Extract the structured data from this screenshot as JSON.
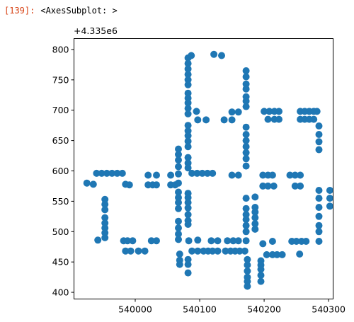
{
  "cell": {
    "prompt": "[139]:",
    "output_text": "<AxesSubplot: >"
  },
  "chart_data": {
    "type": "scatter",
    "y_offset_label": "+4.335e6",
    "xlim": [
      539905,
      540307
    ],
    "ylim": [
      389,
      818
    ],
    "x_ticks": [
      540000,
      540100,
      540200,
      540300
    ],
    "x_tick_labels": [
      "540000",
      "540100",
      "540200",
      "540300"
    ],
    "y_ticks": [
      400,
      450,
      500,
      550,
      600,
      650,
      700,
      750,
      800
    ],
    "y_tick_labels": [
      "400",
      "450",
      "500",
      "550",
      "600",
      "650",
      "700",
      "750",
      "800"
    ],
    "marker_color": "#1f77b4",
    "grid": false,
    "series": [
      {
        "points": [
          [
            539925,
            580
          ],
          [
            539935,
            578
          ],
          [
            539940,
            596
          ],
          [
            539948,
            596
          ],
          [
            539956,
            596
          ],
          [
            539964,
            596
          ],
          [
            539972,
            596
          ],
          [
            539980,
            596
          ],
          [
            539942,
            486
          ],
          [
            539953,
            553
          ],
          [
            539953,
            545
          ],
          [
            539953,
            536
          ],
          [
            539953,
            523
          ],
          [
            539953,
            514
          ],
          [
            539953,
            506
          ],
          [
            539953,
            498
          ],
          [
            539953,
            490
          ],
          [
            539985,
            578
          ],
          [
            539991,
            577
          ],
          [
            539982,
            485
          ],
          [
            539988,
            485
          ],
          [
            539996,
            485
          ],
          [
            539985,
            468
          ],
          [
            539993,
            468
          ],
          [
            540005,
            468
          ],
          [
            540015,
            468
          ],
          [
            540020,
            593
          ],
          [
            540033,
            593
          ],
          [
            540020,
            577
          ],
          [
            540027,
            577
          ],
          [
            540033,
            577
          ],
          [
            540025,
            485
          ],
          [
            540033,
            485
          ],
          [
            540055,
            593
          ],
          [
            540055,
            577
          ],
          [
            540062,
            577
          ],
          [
            540067,
            636
          ],
          [
            540067,
            627
          ],
          [
            540067,
            618
          ],
          [
            540067,
            607
          ],
          [
            540067,
            595
          ],
          [
            540067,
            580
          ],
          [
            540067,
            565
          ],
          [
            540067,
            556
          ],
          [
            540067,
            548
          ],
          [
            540067,
            538
          ],
          [
            540067,
            517
          ],
          [
            540067,
            506
          ],
          [
            540067,
            496
          ],
          [
            540067,
            487
          ],
          [
            540069,
            463
          ],
          [
            540069,
            453
          ],
          [
            540069,
            446
          ],
          [
            540082,
            786
          ],
          [
            540082,
            777
          ],
          [
            540082,
            768
          ],
          [
            540082,
            759
          ],
          [
            540082,
            750
          ],
          [
            540082,
            742
          ],
          [
            540082,
            728
          ],
          [
            540082,
            720
          ],
          [
            540082,
            712
          ],
          [
            540082,
            703
          ],
          [
            540082,
            694
          ],
          [
            540087,
            790
          ],
          [
            540082,
            675
          ],
          [
            540082,
            666
          ],
          [
            540082,
            658
          ],
          [
            540082,
            649
          ],
          [
            540082,
            640
          ],
          [
            540082,
            622
          ],
          [
            540082,
            613
          ],
          [
            540082,
            605
          ],
          [
            540082,
            563
          ],
          [
            540082,
            556
          ],
          [
            540082,
            548
          ],
          [
            540082,
            539
          ],
          [
            540082,
            528
          ],
          [
            540082,
            518
          ],
          [
            540082,
            512
          ],
          [
            540083,
            485
          ],
          [
            540082,
            454
          ],
          [
            540082,
            446
          ],
          [
            540082,
            432
          ],
          [
            540088,
            596
          ],
          [
            540096,
            596
          ],
          [
            540104,
            596
          ],
          [
            540112,
            596
          ],
          [
            540120,
            596
          ],
          [
            540095,
            698
          ],
          [
            540097,
            684
          ],
          [
            540110,
            684
          ],
          [
            540088,
            468
          ],
          [
            540097,
            468
          ],
          [
            540106,
            468
          ],
          [
            540113,
            468
          ],
          [
            540120,
            468
          ],
          [
            540128,
            468
          ],
          [
            540097,
            486
          ],
          [
            540118,
            485
          ],
          [
            540128,
            485
          ],
          [
            540122,
            792
          ],
          [
            540134,
            790
          ],
          [
            540138,
            684
          ],
          [
            540150,
            697
          ],
          [
            540150,
            684
          ],
          [
            540160,
            697
          ],
          [
            540150,
            593
          ],
          [
            540160,
            593
          ],
          [
            540143,
            485
          ],
          [
            540152,
            485
          ],
          [
            540160,
            485
          ],
          [
            540140,
            468
          ],
          [
            540148,
            468
          ],
          [
            540155,
            468
          ],
          [
            540162,
            468
          ],
          [
            540170,
            468
          ],
          [
            540172,
            765
          ],
          [
            540172,
            755
          ],
          [
            540172,
            743
          ],
          [
            540172,
            735
          ],
          [
            540172,
            722
          ],
          [
            540172,
            715
          ],
          [
            540172,
            706
          ],
          [
            540172,
            672
          ],
          [
            540172,
            660
          ],
          [
            540172,
            650
          ],
          [
            540172,
            640
          ],
          [
            540172,
            630
          ],
          [
            540172,
            620
          ],
          [
            540172,
            608
          ],
          [
            540172,
            555
          ],
          [
            540172,
            538
          ],
          [
            540172,
            528
          ],
          [
            540172,
            520
          ],
          [
            540172,
            510
          ],
          [
            540172,
            500
          ],
          [
            540172,
            485
          ],
          [
            540174,
            454
          ],
          [
            540174,
            445
          ],
          [
            540174,
            435
          ],
          [
            540174,
            425
          ],
          [
            540174,
            418
          ],
          [
            540174,
            410
          ],
          [
            540186,
            557
          ],
          [
            540186,
            540
          ],
          [
            540186,
            532
          ],
          [
            540186,
            523
          ],
          [
            540186,
            513
          ],
          [
            540186,
            504
          ],
          [
            540195,
            452
          ],
          [
            540195,
            445
          ],
          [
            540195,
            438
          ],
          [
            540195,
            428
          ],
          [
            540195,
            418
          ],
          [
            540198,
            593
          ],
          [
            540198,
            575
          ],
          [
            540206,
            593
          ],
          [
            540206,
            575
          ],
          [
            540198,
            480
          ],
          [
            540204,
            462
          ],
          [
            540213,
            462
          ],
          [
            540220,
            462
          ],
          [
            540228,
            462
          ],
          [
            540200,
            698
          ],
          [
            540208,
            698
          ],
          [
            540216,
            698
          ],
          [
            540206,
            685
          ],
          [
            540216,
            685
          ],
          [
            540213,
            593
          ],
          [
            540215,
            575
          ],
          [
            540213,
            484
          ],
          [
            540223,
            698
          ],
          [
            540223,
            685
          ],
          [
            540240,
            593
          ],
          [
            540248,
            593
          ],
          [
            540248,
            575
          ],
          [
            540256,
            593
          ],
          [
            540256,
            575
          ],
          [
            540243,
            484
          ],
          [
            540250,
            484
          ],
          [
            540258,
            484
          ],
          [
            540265,
            484
          ],
          [
            540255,
            463
          ],
          [
            540256,
            698
          ],
          [
            540256,
            685
          ],
          [
            540263,
            698
          ],
          [
            540263,
            685
          ],
          [
            540270,
            698
          ],
          [
            540270,
            685
          ],
          [
            540277,
            698
          ],
          [
            540277,
            685
          ],
          [
            540282,
            698
          ],
          [
            540285,
            674
          ],
          [
            540285,
            660
          ],
          [
            540285,
            648
          ],
          [
            540285,
            635
          ],
          [
            540285,
            568
          ],
          [
            540285,
            555
          ],
          [
            540285,
            540
          ],
          [
            540285,
            525
          ],
          [
            540285,
            510
          ],
          [
            540285,
            500
          ],
          [
            540285,
            484
          ],
          [
            540302,
            568
          ],
          [
            540302,
            555
          ],
          [
            540302,
            542
          ]
        ]
      }
    ]
  }
}
